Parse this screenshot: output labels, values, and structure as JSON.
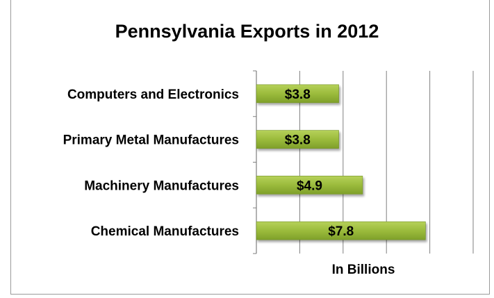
{
  "chart_data": {
    "type": "bar",
    "orientation": "horizontal",
    "title": "Pennsylvania Exports in 2012",
    "xlabel": "In Billions",
    "ylabel": "",
    "categories": [
      "Computers and Electronics",
      "Primary Metal Manufactures",
      "Machinery Manufactures",
      "Chemical Manufactures"
    ],
    "values": [
      3.8,
      3.8,
      4.9,
      7.8
    ],
    "data_labels": [
      "$3.8",
      "$3.8",
      "$4.9",
      "$7.8"
    ],
    "xlim": [
      0,
      10
    ],
    "grid": true,
    "colors": {
      "bar": "#9bbb3c",
      "bar_dark": "#6f8f22",
      "grid": "#7f7f7f"
    }
  }
}
